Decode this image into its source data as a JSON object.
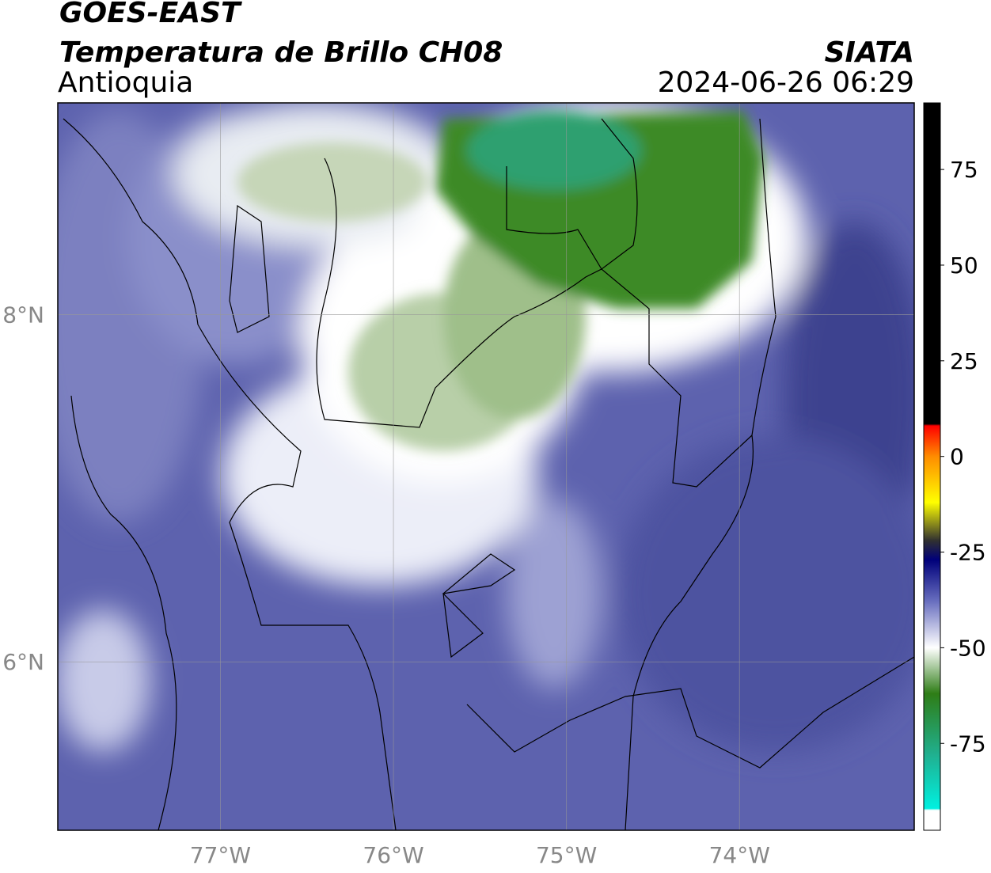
{
  "header": {
    "title": "GOES-EAST",
    "subtitle": "Temperatura de Brillo CH08",
    "region": "Antioquia",
    "source": "SIATA",
    "datetime": "2024-06-26 06:29"
  },
  "map": {
    "xlim": [
      -77.94,
      -72.99
    ],
    "ylim": [
      5.03,
      9.22
    ],
    "xticks": [
      {
        "value": -77,
        "label": "77°W"
      },
      {
        "value": -76,
        "label": "76°W"
      },
      {
        "value": -75,
        "label": "75°W"
      },
      {
        "value": -74,
        "label": "74°W"
      }
    ],
    "yticks": [
      {
        "value": 8,
        "label": "8°N"
      },
      {
        "value": 6,
        "label": "6°N"
      }
    ],
    "grid": true
  },
  "colorbar": {
    "lim": [
      -97.7,
      92.4
    ],
    "ticks": [
      75,
      50,
      25,
      0,
      -25,
      -50,
      -75
    ],
    "stops": [
      {
        "value": 92.4,
        "color": "#000000"
      },
      {
        "value": 8.5,
        "color": "#000000"
      },
      {
        "value": 8,
        "color": "#ff0000"
      },
      {
        "value": 0,
        "color": "#ff8c00"
      },
      {
        "value": -12,
        "color": "#ffff00"
      },
      {
        "value": -22,
        "color": "#303030"
      },
      {
        "value": -27,
        "color": "#00007a"
      },
      {
        "value": -38,
        "color": "#6a70c0"
      },
      {
        "value": -50,
        "color": "#ffffff"
      },
      {
        "value": -62,
        "color": "#2e7d16"
      },
      {
        "value": -78,
        "color": "#20b090"
      },
      {
        "value": -92,
        "color": "#00f0e0"
      },
      {
        "value": -92.5,
        "color": "#ffffff"
      },
      {
        "value": -97.7,
        "color": "#ffffff"
      }
    ]
  }
}
